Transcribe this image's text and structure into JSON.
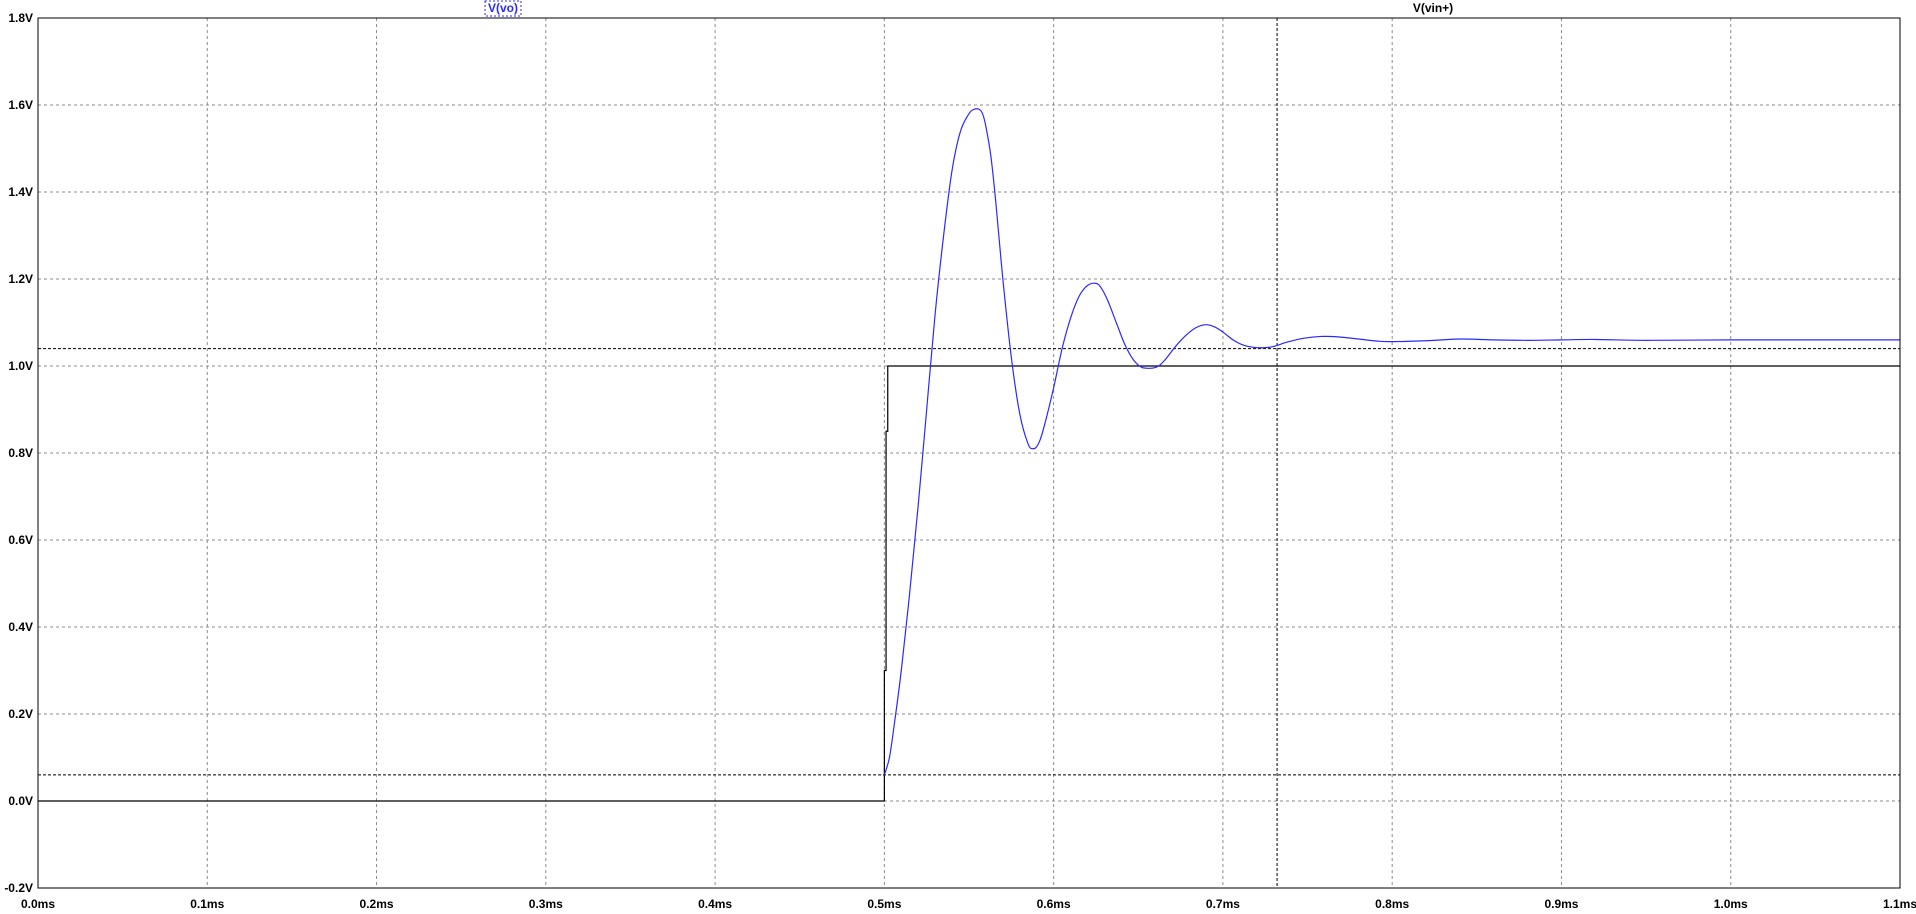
{
  "chart_data": {
    "type": "line",
    "xlim": [
      0.0,
      1.1
    ],
    "ylim": [
      -0.2,
      1.8
    ],
    "x_ticks": [
      "0.0ms",
      "0.1ms",
      "0.2ms",
      "0.3ms",
      "0.4ms",
      "0.5ms",
      "0.6ms",
      "0.7ms",
      "0.8ms",
      "0.9ms",
      "1.0ms",
      "1.1ms"
    ],
    "x_tick_values": [
      0.0,
      0.1,
      0.2,
      0.3,
      0.4,
      0.5,
      0.6,
      0.7,
      0.8,
      0.9,
      1.0,
      1.1
    ],
    "y_ticks": [
      "-0.2V",
      "0.0V",
      "0.2V",
      "0.4V",
      "0.6V",
      "0.8V",
      "1.0V",
      "1.2V",
      "1.4V",
      "1.6V",
      "1.8V"
    ],
    "y_tick_values": [
      -0.2,
      0.0,
      0.2,
      0.4,
      0.6,
      0.8,
      1.0,
      1.2,
      1.4,
      1.6,
      1.8
    ],
    "grid": true,
    "series": [
      {
        "name": "V(vo)",
        "color": "#2a2aff",
        "x": [
          0.5,
          0.503,
          0.506,
          0.51,
          0.515,
          0.52,
          0.525,
          0.53,
          0.535,
          0.54,
          0.545,
          0.55,
          0.553,
          0.556,
          0.558,
          0.56,
          0.563,
          0.566,
          0.57,
          0.575,
          0.58,
          0.585,
          0.588,
          0.59,
          0.592,
          0.595,
          0.6,
          0.605,
          0.61,
          0.615,
          0.62,
          0.625,
          0.628,
          0.632,
          0.637,
          0.642,
          0.647,
          0.652,
          0.658,
          0.662,
          0.666,
          0.672,
          0.678,
          0.684,
          0.69,
          0.695,
          0.7,
          0.706,
          0.712,
          0.718,
          0.724,
          0.73,
          0.738,
          0.748,
          0.758,
          0.768,
          0.78,
          0.792,
          0.8,
          0.82,
          0.84,
          0.86,
          0.88,
          0.9,
          0.92,
          0.95,
          1.0,
          1.05,
          1.1
        ],
        "y": [
          0.06,
          0.1,
          0.18,
          0.3,
          0.48,
          0.68,
          0.9,
          1.12,
          1.3,
          1.45,
          1.54,
          1.58,
          1.59,
          1.59,
          1.58,
          1.55,
          1.48,
          1.37,
          1.2,
          1.02,
          0.89,
          0.82,
          0.81,
          0.815,
          0.83,
          0.87,
          0.95,
          1.04,
          1.11,
          1.16,
          1.185,
          1.19,
          1.18,
          1.15,
          1.1,
          1.05,
          1.015,
          0.997,
          0.995,
          1.0,
          1.015,
          1.045,
          1.07,
          1.088,
          1.095,
          1.09,
          1.078,
          1.06,
          1.048,
          1.043,
          1.042,
          1.045,
          1.055,
          1.064,
          1.068,
          1.067,
          1.062,
          1.057,
          1.056,
          1.058,
          1.062,
          1.06,
          1.059,
          1.06,
          1.061,
          1.059,
          1.06,
          1.06,
          1.06
        ]
      },
      {
        "name": "V(vin+)",
        "color": "#000000",
        "x": [
          0.0,
          0.5,
          0.5,
          0.501,
          0.501,
          0.502,
          0.502,
          1.1
        ],
        "y": [
          0.0,
          0.0,
          0.3,
          0.3,
          0.85,
          0.85,
          1.0,
          1.0
        ]
      }
    ],
    "cursors": {
      "horizontal": [
        0.06,
        1.04
      ],
      "vertical": [
        0.732
      ]
    }
  }
}
